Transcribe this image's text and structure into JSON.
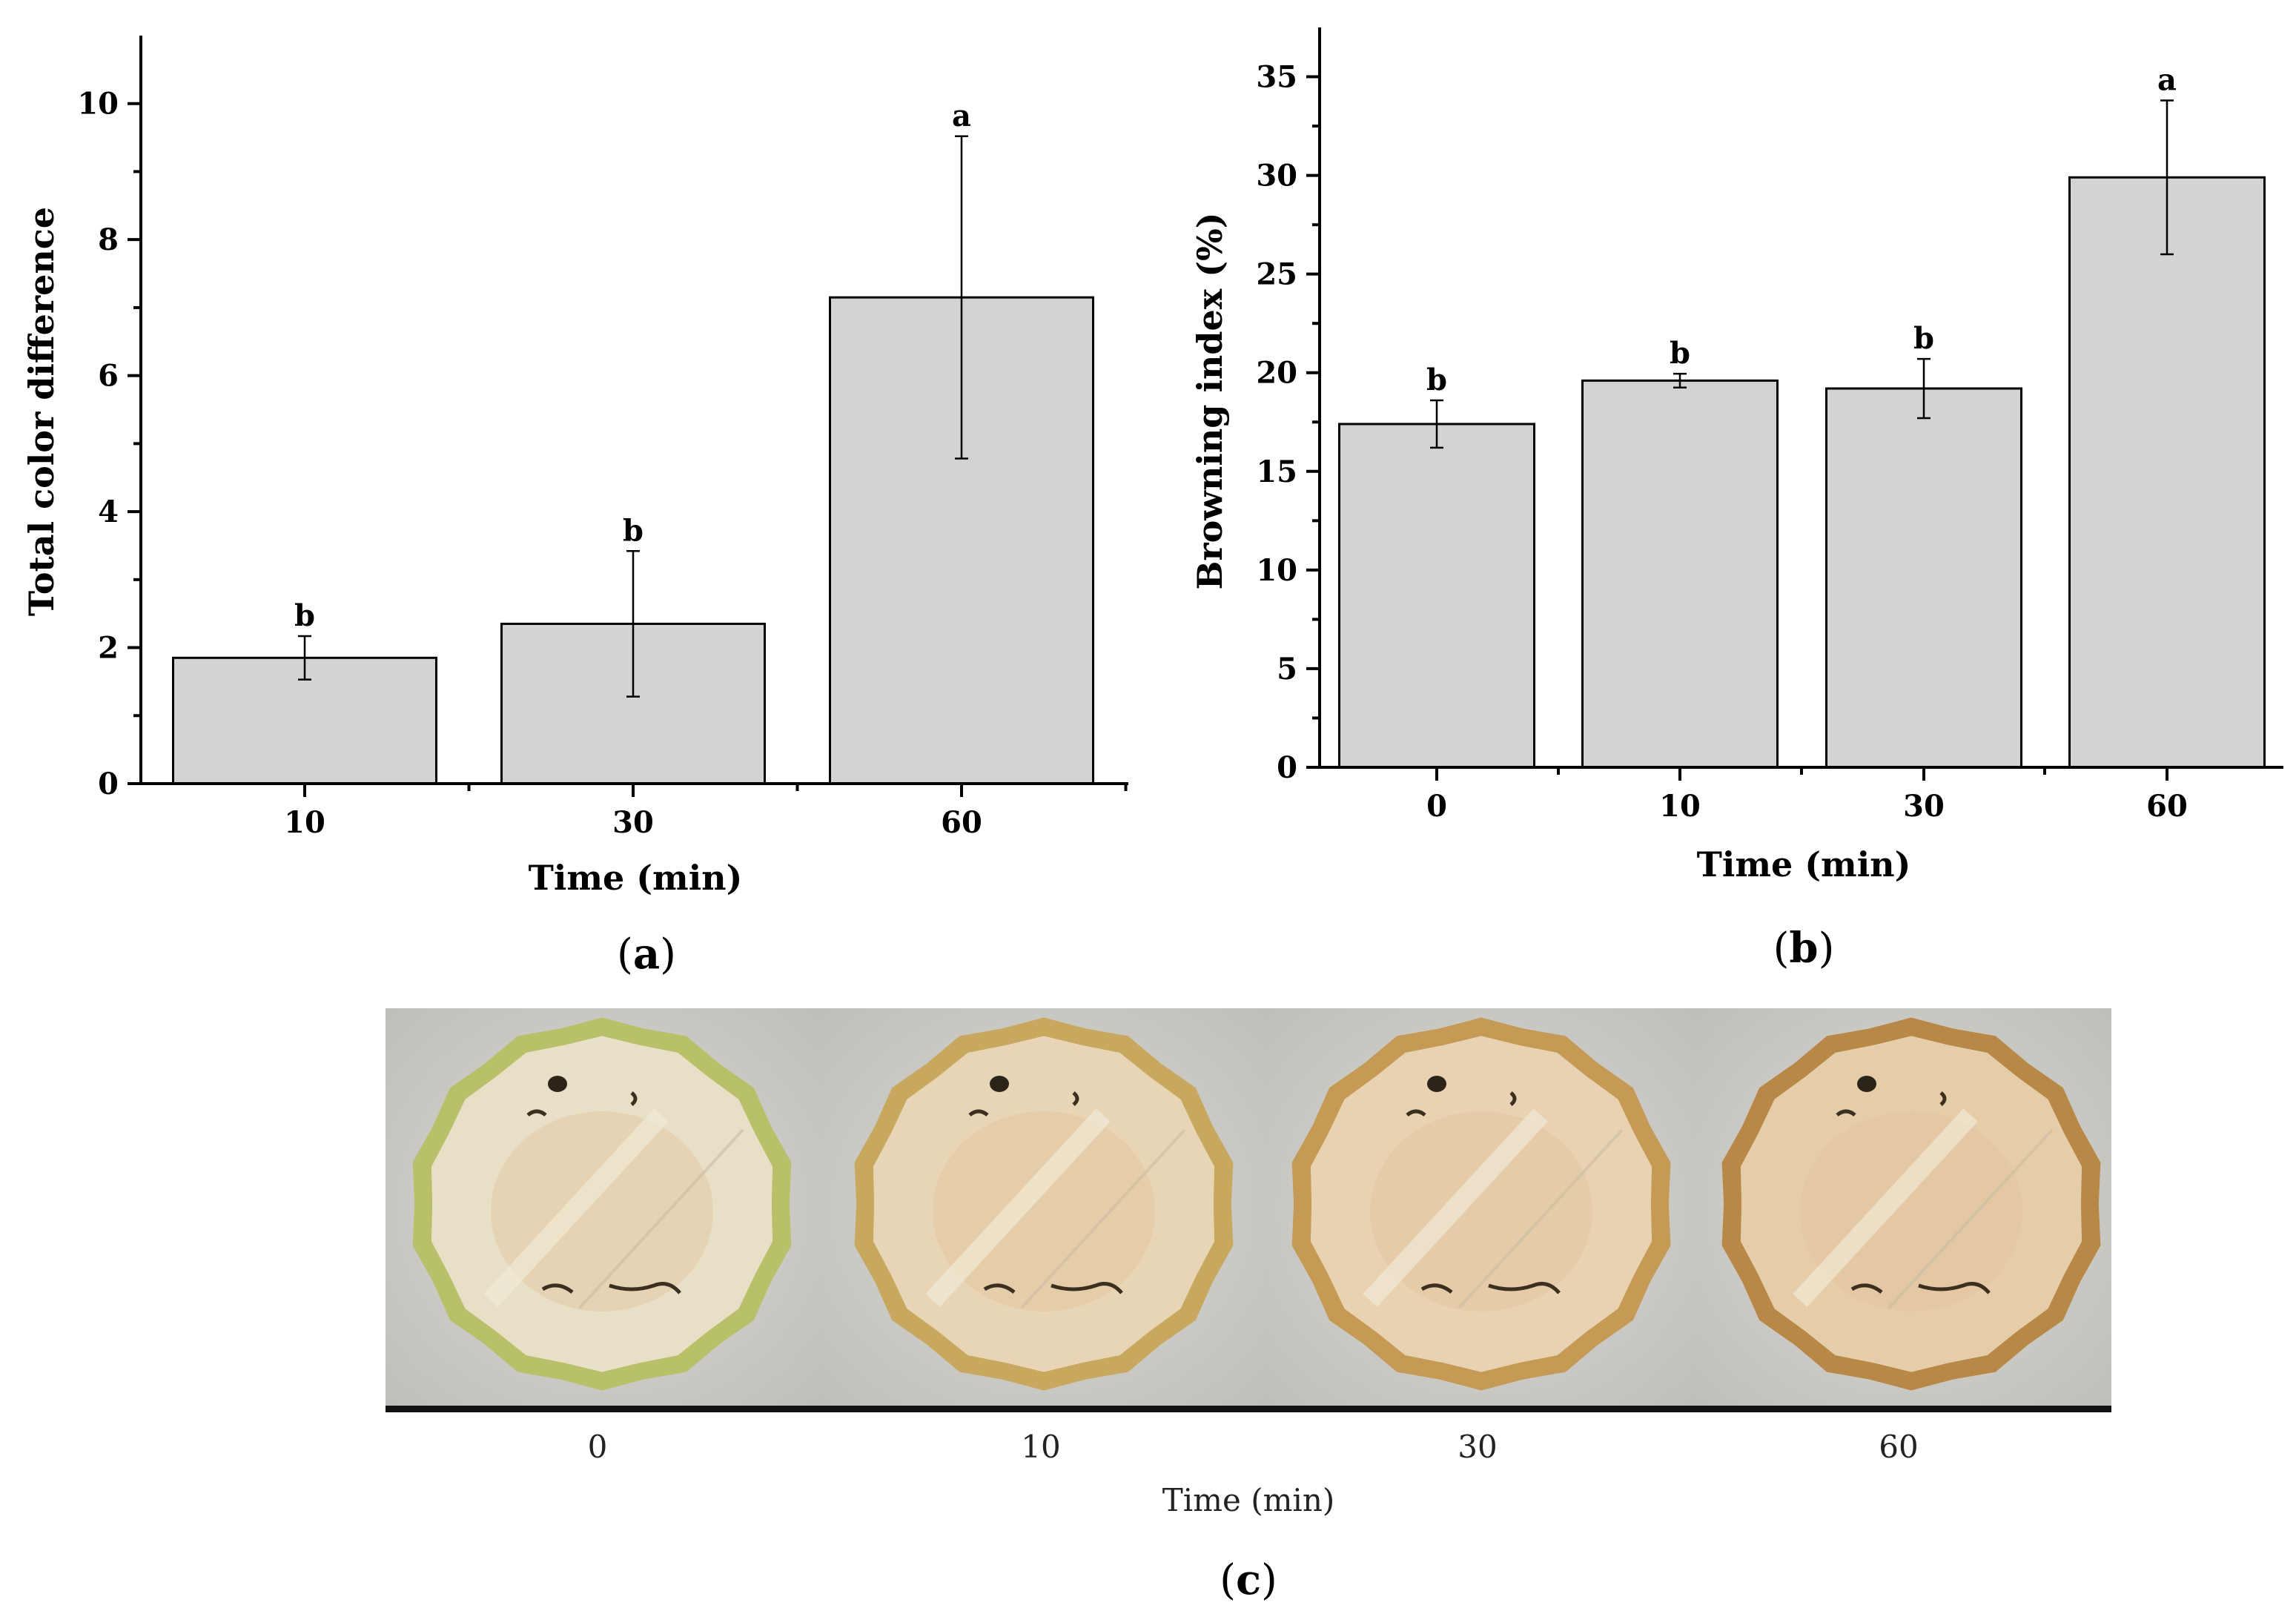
{
  "chart_data": [
    {
      "id": "a",
      "type": "bar",
      "panel_label": "a",
      "title": "",
      "xlabel": "Time (min)",
      "ylabel": "Total color difference",
      "categories": [
        "10",
        "30",
        "60"
      ],
      "values": [
        1.85,
        2.35,
        7.15
      ],
      "errors": [
        0.32,
        1.07,
        2.37
      ],
      "significance": [
        "b",
        "b",
        "a"
      ],
      "ylim": [
        0,
        11
      ],
      "yticks": [
        0,
        2,
        4,
        6,
        8,
        10
      ],
      "ytick_labels": [
        "0",
        "2",
        "4",
        "6",
        "8",
        "10"
      ],
      "grid": false,
      "bar_color": "#d3d3d3"
    },
    {
      "id": "b",
      "type": "bar",
      "panel_label": "b",
      "title": "",
      "xlabel": "Time (min)",
      "ylabel": "Browning index (%)",
      "categories": [
        "0",
        "10",
        "30",
        "60"
      ],
      "values": [
        17.4,
        19.6,
        19.2,
        29.9
      ],
      "errors": [
        1.2,
        0.35,
        1.5,
        3.9
      ],
      "significance": [
        "b",
        "b",
        "b",
        "a"
      ],
      "ylim": [
        0,
        37.5
      ],
      "yticks": [
        0,
        5,
        10,
        15,
        20,
        25,
        30,
        35
      ],
      "ytick_labels": [
        "0",
        "5",
        "10",
        "15",
        "20",
        "25",
        "30",
        "35"
      ],
      "grid": false,
      "bar_color": "#d3d3d3"
    }
  ],
  "photo_panel": {
    "panel_label": "c",
    "xlabel": "Time (min)",
    "times": [
      "0",
      "10",
      "30",
      "60"
    ],
    "rim_colors": [
      "#b9c06a",
      "#c7a85e",
      "#c49a55",
      "#b88847"
    ],
    "flesh_colors": [
      "#e7e0c6",
      "#e8d5b6",
      "#e9d2b2",
      "#e6cda9"
    ]
  }
}
